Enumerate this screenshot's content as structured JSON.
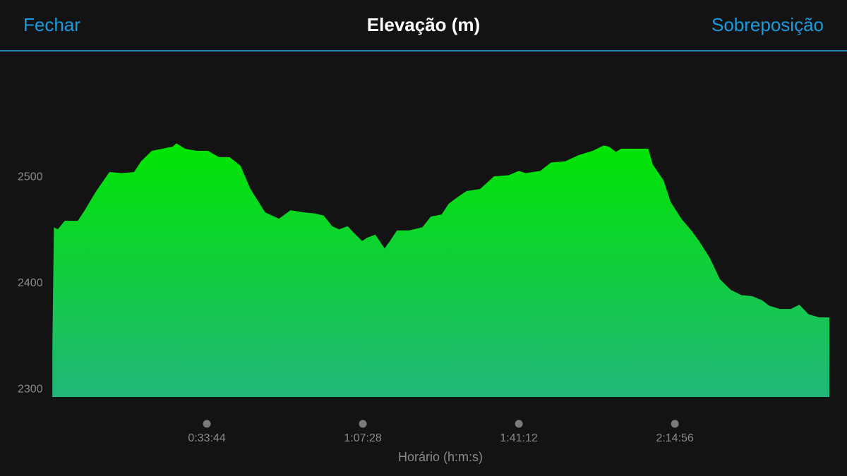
{
  "header": {
    "left_button": "Fechar",
    "right_button": "Sobreposição"
  },
  "chart_data": {
    "type": "area",
    "title": "Elevação (m)",
    "xlabel": "Horário (h:m:s)",
    "x": [
      20,
      40,
      90,
      180,
      350,
      440,
      580,
      760,
      920,
      1080,
      1170,
      1310,
      1450,
      1580,
      1630,
      1740,
      1890,
      2040,
      2180,
      2320,
      2460,
      2590,
      2780,
      2960,
      3110,
      3280,
      3420,
      3540,
      3650,
      3740,
      3850,
      3940,
      4040,
      4100,
      4210,
      4330,
      4400,
      4490,
      4650,
      4820,
      4930,
      5070,
      5160,
      5250,
      5390,
      5570,
      5750,
      5940,
      6070,
      6160,
      6350,
      6490,
      6670,
      6850,
      7030,
      7170,
      7240,
      7330,
      7400,
      7580,
      7750,
      7810,
      7950,
      8040,
      8180,
      8320,
      8410,
      8550,
      8680,
      8820,
      8960,
      9100,
      9230,
      9320,
      9460,
      9600,
      9710,
      9830,
      9970,
      10100
    ],
    "values": [
      2340,
      2453,
      2451,
      2459,
      2459,
      2469,
      2486,
      2505,
      2504,
      2505,
      2515,
      2525,
      2527,
      2529,
      2532,
      2527,
      2525,
      2525,
      2519,
      2519,
      2511,
      2489,
      2467,
      2461,
      2469,
      2467,
      2466,
      2464,
      2454,
      2451,
      2454,
      2447,
      2440,
      2443,
      2446,
      2433,
      2440,
      2450,
      2450,
      2453,
      2463,
      2465,
      2475,
      2480,
      2487,
      2489,
      2501,
      2502,
      2506,
      2504,
      2506,
      2514,
      2515,
      2521,
      2525,
      2530,
      2529,
      2524,
      2527,
      2527,
      2527,
      2512,
      2497,
      2477,
      2461,
      2449,
      2440,
      2424,
      2404,
      2394,
      2389,
      2388,
      2384,
      2379,
      2376,
      2376,
      2380,
      2371,
      2368,
      2368
    ],
    "gradient": [
      "#00e600",
      "#22b77a"
    ],
    "xlim": [
      0,
      10100
    ],
    "xticks": [
      {
        "value": 2024,
        "label": "0:33:44"
      },
      {
        "value": 4048,
        "label": "1:07:28"
      },
      {
        "value": 6072,
        "label": "1:41:12"
      },
      {
        "value": 8096,
        "label": "2:14:56"
      }
    ],
    "ylim": [
      2293,
      2613
    ],
    "yticks": [
      2300,
      2400,
      2500
    ],
    "grid": false
  }
}
